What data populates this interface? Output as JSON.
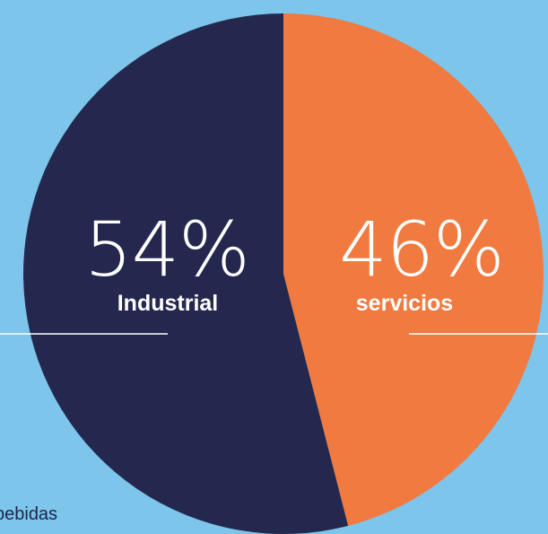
{
  "chart_data": {
    "type": "pie",
    "slices": [
      {
        "label": "servicios",
        "value": 46,
        "value_label": "46%",
        "color": "#f07a40"
      },
      {
        "label": "Industrial",
        "value": 54,
        "value_label": "54%",
        "color": "#24284f"
      }
    ],
    "start_angle_deg": 0,
    "direction": "clockwise"
  },
  "background_color": "#7dc5ea",
  "divider_color": "#ffffff",
  "partial_text": "bebidas"
}
